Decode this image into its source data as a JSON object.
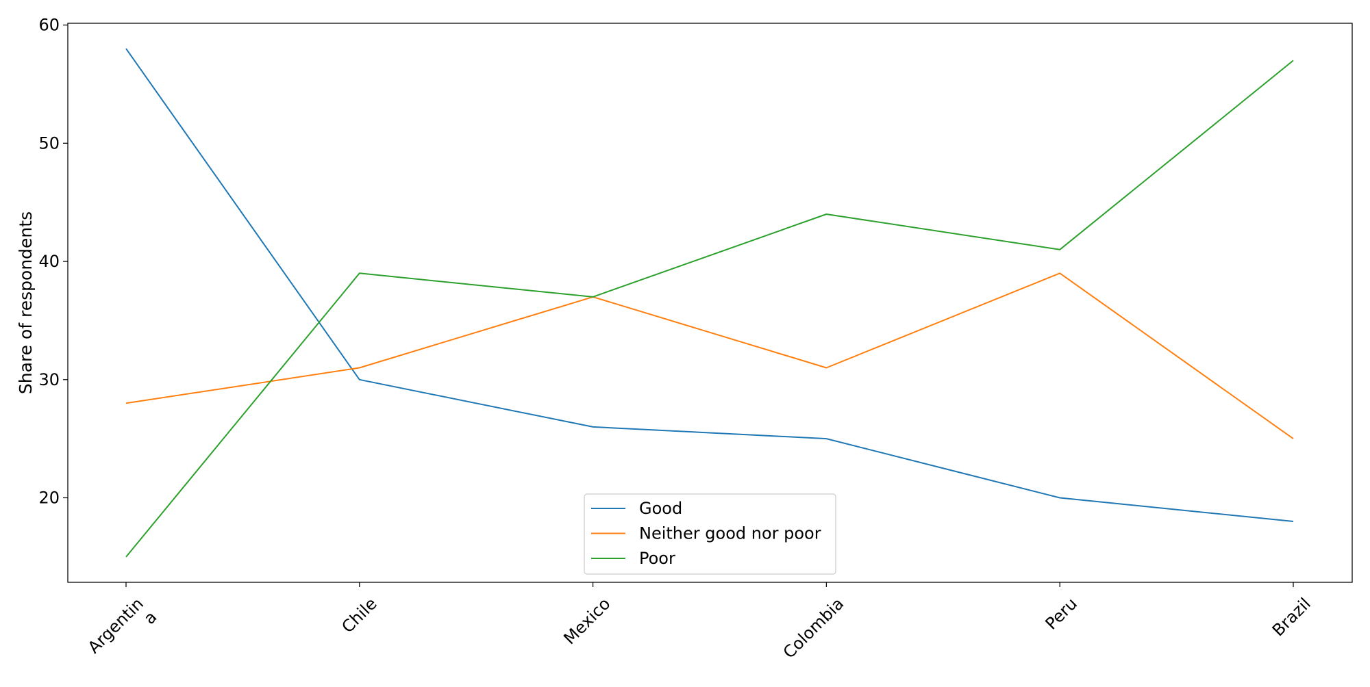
{
  "chart_data": {
    "type": "line",
    "title": "",
    "xlabel": "",
    "ylabel": "Share of respondents",
    "categories": [
      "Argentin\na",
      "Chile",
      "Mexico",
      "Colombia",
      "Peru",
      "Brazil"
    ],
    "series": [
      {
        "name": "Good",
        "color": "#1f77b4",
        "values": [
          58,
          30,
          26,
          25,
          20,
          18
        ]
      },
      {
        "name": "Neither good nor poor",
        "color": "#ff7f0e",
        "values": [
          28,
          31,
          37,
          31,
          39,
          25
        ]
      },
      {
        "name": "Poor",
        "color": "#2ca02c",
        "values": [
          15,
          39,
          37,
          44,
          41,
          57
        ]
      }
    ],
    "yticks": [
      20,
      30,
      40,
      50,
      60
    ],
    "ylim": [
      12.85,
      60.15
    ],
    "grid": false,
    "legend_position": "lower center"
  }
}
